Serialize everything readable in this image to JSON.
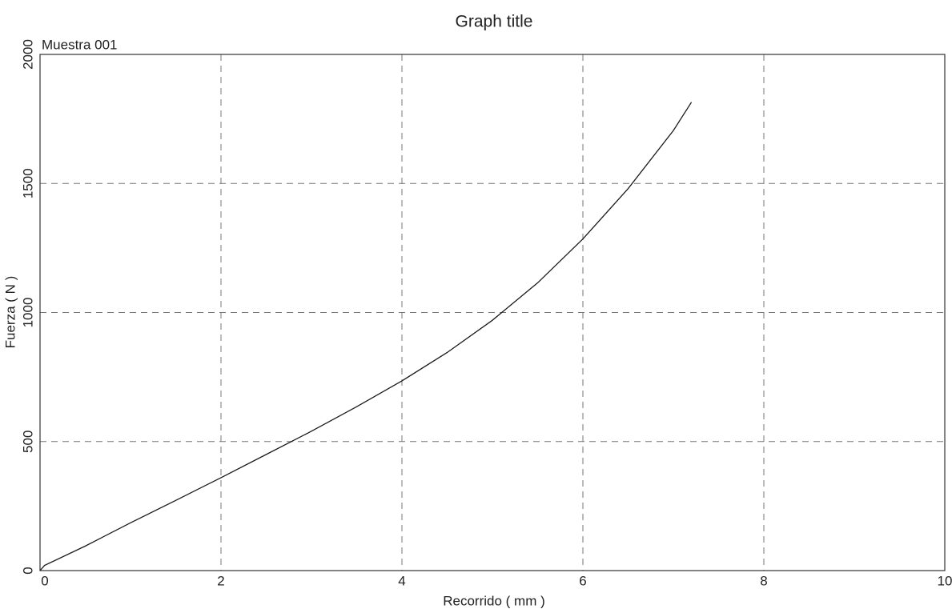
{
  "chart_data": {
    "type": "line",
    "title": "Graph title",
    "annotation": "Muestra 001",
    "x_label": "Recorrido ( mm )",
    "y_label": "Fuerza ( N )",
    "x": [
      0,
      0.05,
      0.5,
      1,
      1.5,
      2,
      2.5,
      3,
      3.5,
      4,
      4.5,
      5,
      5.5,
      6,
      6.5,
      7,
      7.2
    ],
    "series": [
      {
        "color": "#1a1a1a",
        "values": [
          0,
          20,
          95,
          185,
          272,
          360,
          450,
          540,
          635,
          735,
          845,
          970,
          1115,
          1285,
          1480,
          1705,
          1815
        ]
      }
    ],
    "xlim": [
      0,
      10
    ],
    "xticks": [
      0,
      2,
      4,
      6,
      8,
      10
    ],
    "ylim": [
      0,
      2000
    ],
    "yticks": [
      0,
      500,
      1000,
      1500,
      2000
    ],
    "grid": true
  }
}
